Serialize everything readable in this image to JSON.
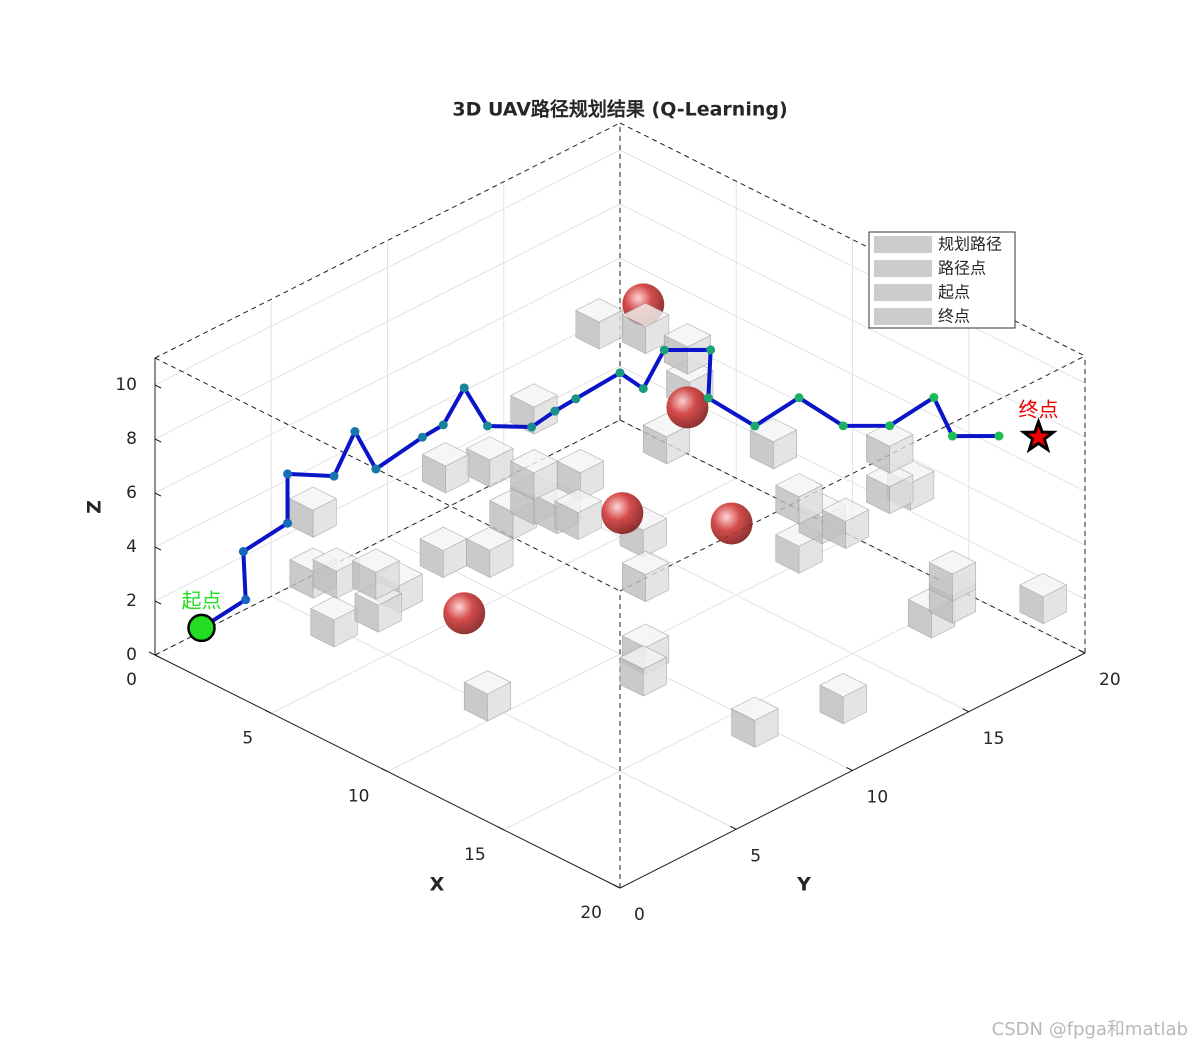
{
  "chart_data": {
    "type": "path3d",
    "title": "3D UAV路径规划结果 (Q-Learning)",
    "xlabel": "X",
    "ylabel": "Y",
    "zlabel": "Z",
    "xlim": [
      0,
      20
    ],
    "ylim": [
      0,
      20
    ],
    "zlim": [
      0,
      11
    ],
    "xticks": [
      0,
      5,
      10,
      15,
      20
    ],
    "yticks": [
      0,
      5,
      10,
      15,
      20
    ],
    "zticks": [
      0,
      2,
      4,
      6,
      8,
      10
    ],
    "grid": true,
    "legend": "northeast",
    "legend_swatch": "#cccccc",
    "series": [
      {
        "name": "规划路径",
        "color": "#0a14c8",
        "x": [
          1,
          1.9,
          2.1,
          3.0,
          3.2,
          4.3,
          4.0,
          4.9,
          5.7,
          6.2,
          6.8,
          7.2,
          8.2,
          8.6,
          9.1,
          10.1,
          10.7,
          9.5,
          10.5,
          10.2,
          12.4,
          13.3,
          14.3,
          15.3,
          16.2,
          17.1,
          18.1
        ],
        "y": [
          1,
          2.0,
          1.7,
          2.7,
          2.5,
          3.4,
          4.6,
          4.6,
          5.8,
          6.2,
          6.5,
          7.1,
          8.0,
          8.6,
          9.0,
          9.9,
          10.3,
          12.4,
          13.4,
          13.6,
          13.4,
          14.4,
          15.3,
          16.3,
          17.3,
          17.2,
          18.2
        ],
        "z": [
          1,
          2,
          4,
          5,
          7,
          7,
          8,
          7,
          8,
          8.5,
          10,
          8.5,
          8.5,
          9,
          9.5,
          10.5,
          10,
          10,
          10,
          8,
          8,
          9,
          8,
          8,
          9,
          8,
          8
        ]
      },
      {
        "name": "路径点",
        "colors": [
          "#1560c8",
          "#1dc050"
        ]
      },
      {
        "name": "起点",
        "color": "#22dd22",
        "x": [
          1
        ],
        "y": [
          1
        ],
        "z": [
          1
        ]
      },
      {
        "name": "终点",
        "color": "#ee0000",
        "x": [
          19
        ],
        "y": [
          19
        ],
        "z": [
          8
        ]
      }
    ],
    "obstacles": {
      "cubes": {
        "color": "#bdbdbd",
        "x": [
          6.4,
          7.6,
          8.8,
          9.2,
          9.3,
          6.9,
          5.2,
          5.9,
          7.4,
          8.4,
          7.3,
          6.9,
          8.2,
          8.9,
          5.3,
          6.3,
          9.9,
          10.7,
          2.5,
          2.8,
          3.3,
          4.2,
          4.7,
          4.5,
          3.6,
          11.5,
          11.8,
          9.5,
          16.4,
          17.3,
          13.0,
          12.8,
          13.2,
          13.9,
          15.1,
          15.1,
          15.4,
          17.3,
          17.1,
          16.7,
          18.5,
          12.4
        ],
        "y": [
          12.7,
          13.5,
          14.1,
          13.8,
          12.7,
          9.4,
          7.3,
          8.5,
          8.9,
          9.9,
          9.0,
          8.5,
          9.1,
          9.3,
          7.1,
          8.1,
          11.1,
          10.4,
          4.3,
          4.0,
          4.5,
          5.3,
          5.8,
          5.1,
          4.1,
          9.6,
          9.2,
          4.8,
          9.4,
          12.3,
          14.7,
          14.9,
          15.5,
          15.8,
          16.5,
          16.5,
          17.1,
          17.0,
          17.2,
          16.7,
          19.7,
          14.2
        ],
        "z": [
          9.5,
          9.5,
          9,
          8,
          6.5,
          8,
          6,
          6,
          6,
          6,
          5,
          4.5,
          5,
          5,
          3,
          3,
          4,
          3,
          4.5,
          2.5,
          2.5,
          2.5,
          2,
          1.5,
          1,
          1,
          0.5,
          0.5,
          0.5,
          0.5,
          5,
          3,
          4,
          4,
          7,
          5.5,
          5.5,
          3,
          2,
          1.5,
          1.5,
          7
        ]
      },
      "spheres": {
        "color": "#d03838",
        "x": [
          7.1,
          11.3,
          9.8,
          12.6,
          7.2
        ],
        "y": [
          13.9,
          11.6,
          10.3,
          12.2,
          6.1
        ],
        "z": [
          10,
          9,
          5,
          5,
          2
        ]
      }
    }
  },
  "watermark": "CSDN @fpga和matlab"
}
